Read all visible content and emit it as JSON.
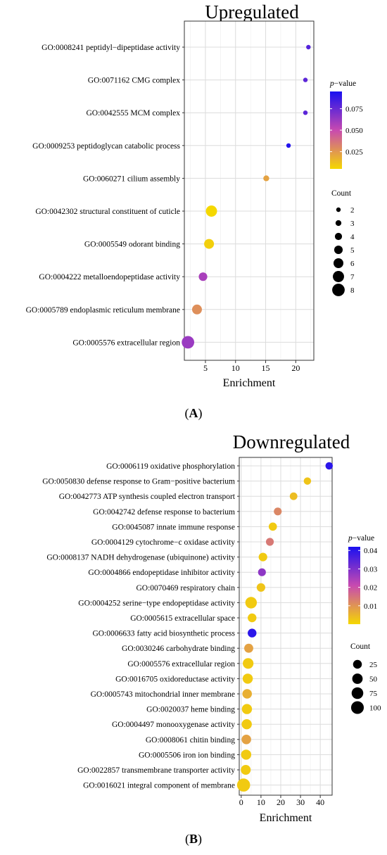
{
  "figure": {
    "panels": [
      {
        "letter": "A",
        "open": "(",
        "close": ")"
      },
      {
        "letter": "B",
        "open": "(",
        "close": ")"
      }
    ]
  },
  "chart_data": [
    {
      "type": "scatter",
      "title": "Upregulated",
      "xlabel": "Enrichment",
      "ylabel": "",
      "xlim": [
        1.5,
        23
      ],
      "x_ticks": [
        5,
        10,
        15,
        20
      ],
      "grid": true,
      "color_scale": {
        "label_italic": "p",
        "label_rest": "−value",
        "min": 0.005,
        "max": 0.095,
        "ticks": [
          0.025,
          0.05,
          0.075
        ],
        "tick_labels": [
          "0.025",
          "0.050",
          "0.075"
        ],
        "low_color": "#f5d800",
        "mid_color": "#c84ab0",
        "high_color": "#1a10f0"
      },
      "size_legend": {
        "title": "Count",
        "values": [
          2,
          3,
          4,
          5,
          6,
          7,
          8
        ],
        "labels": [
          "2",
          "3",
          "4",
          "5",
          "6",
          "7",
          "8"
        ]
      },
      "terms": [
        {
          "id": "GO:0008241",
          "name": "peptidyl−dipeptidase activity",
          "enrichment": 22.1,
          "count": 2,
          "pvalue": 0.08
        },
        {
          "id": "GO:0071162",
          "name": "CMG complex",
          "enrichment": 21.6,
          "count": 2,
          "pvalue": 0.078
        },
        {
          "id": "GO:0042555",
          "name": "MCM complex",
          "enrichment": 21.6,
          "count": 2,
          "pvalue": 0.078
        },
        {
          "id": "GO:0009253",
          "name": "peptidoglycan catabolic process",
          "enrichment": 18.8,
          "count": 2,
          "pvalue": 0.093
        },
        {
          "id": "GO:0060271",
          "name": "cilium assembly",
          "enrichment": 15.1,
          "count": 3,
          "pvalue": 0.022
        },
        {
          "id": "GO:0042302",
          "name": "structural constituent of cuticle",
          "enrichment": 6.0,
          "count": 7,
          "pvalue": 0.005
        },
        {
          "id": "GO:0005549",
          "name": "odorant binding",
          "enrichment": 5.6,
          "count": 6,
          "pvalue": 0.008
        },
        {
          "id": "GO:0004222",
          "name": "metalloendopeptidase activity",
          "enrichment": 4.6,
          "count": 5,
          "pvalue": 0.058
        },
        {
          "id": "GO:0005789",
          "name": "endoplasmic reticulum membrane",
          "enrichment": 3.6,
          "count": 6,
          "pvalue": 0.028
        },
        {
          "id": "GO:0005576",
          "name": "extracellular region",
          "enrichment": 2.1,
          "count": 8,
          "pvalue": 0.062
        }
      ]
    },
    {
      "type": "scatter",
      "title": "Downregulated",
      "xlabel": "Enrichment",
      "ylabel": "",
      "xlim": [
        -1,
        46
      ],
      "x_ticks": [
        0,
        10,
        20,
        30,
        40
      ],
      "grid": true,
      "color_scale": {
        "label_italic": "p",
        "label_rest": "−value",
        "min": 0.0,
        "max": 0.042,
        "ticks": [
          0.01,
          0.02,
          0.03,
          0.04
        ],
        "tick_labels": [
          "0.01",
          "0.02",
          "0.03",
          "0.04"
        ],
        "low_color": "#f5d800",
        "mid_color": "#c84ab0",
        "high_color": "#1a10f0"
      },
      "size_legend": {
        "title": "Count",
        "values": [
          25,
          50,
          75,
          100
        ],
        "labels": [
          "25",
          "50",
          "75",
          "100"
        ]
      },
      "terms": [
        {
          "id": "GO:0006119",
          "name": "oxidative phosphorylation",
          "enrichment": 44.5,
          "count": 10,
          "pvalue": 0.04
        },
        {
          "id": "GO:0050830",
          "name": "defense response to Gram−positive bacterium",
          "enrichment": 33.5,
          "count": 10,
          "pvalue": 0.003
        },
        {
          "id": "GO:0042773",
          "name": "ATP synthesis coupled electron transport",
          "enrichment": 26.5,
          "count": 12,
          "pvalue": 0.004
        },
        {
          "id": "GO:0042742",
          "name": "defense response to bacterium",
          "enrichment": 18.5,
          "count": 14,
          "pvalue": 0.012
        },
        {
          "id": "GO:0045087",
          "name": "innate immune response",
          "enrichment": 16.0,
          "count": 18,
          "pvalue": 0.002
        },
        {
          "id": "GO:0004129",
          "name": "cytochrome−c oxidase activity",
          "enrichment": 14.5,
          "count": 14,
          "pvalue": 0.014
        },
        {
          "id": "GO:0008137",
          "name": "NADH dehydrogenase (ubiquinone) activity",
          "enrichment": 11.0,
          "count": 22,
          "pvalue": 0.002
        },
        {
          "id": "GO:0004866",
          "name": "endopeptidase inhibitor activity",
          "enrichment": 10.5,
          "count": 14,
          "pvalue": 0.028
        },
        {
          "id": "GO:0070469",
          "name": "respiratory chain",
          "enrichment": 10.0,
          "count": 22,
          "pvalue": 0.003
        },
        {
          "id": "GO:0004252",
          "name": "serine−type endopeptidase activity",
          "enrichment": 5.0,
          "count": 72,
          "pvalue": 0.002
        },
        {
          "id": "GO:0005615",
          "name": "extracellular space",
          "enrichment": 5.5,
          "count": 24,
          "pvalue": 0.002
        },
        {
          "id": "GO:0006633",
          "name": "fatty acid biosynthetic process",
          "enrichment": 5.5,
          "count": 24,
          "pvalue": 0.04
        },
        {
          "id": "GO:0030246",
          "name": "carbohydrate binding",
          "enrichment": 3.8,
          "count": 28,
          "pvalue": 0.008
        },
        {
          "id": "GO:0005576",
          "name": "extracellular region",
          "enrichment": 3.5,
          "count": 55,
          "pvalue": 0.002
        },
        {
          "id": "GO:0016705",
          "name": "oxidoreductase activity",
          "enrichment": 3.3,
          "count": 45,
          "pvalue": 0.002
        },
        {
          "id": "GO:0005743",
          "name": "mitochondrial inner membrane",
          "enrichment": 3.0,
          "count": 35,
          "pvalue": 0.006
        },
        {
          "id": "GO:0020037",
          "name": "heme binding",
          "enrichment": 2.9,
          "count": 45,
          "pvalue": 0.002
        },
        {
          "id": "GO:0004497",
          "name": "monooxygenase activity",
          "enrichment": 2.8,
          "count": 45,
          "pvalue": 0.002
        },
        {
          "id": "GO:0008061",
          "name": "chitin binding",
          "enrichment": 2.6,
          "count": 35,
          "pvalue": 0.008
        },
        {
          "id": "GO:0005506",
          "name": "iron ion binding",
          "enrichment": 2.5,
          "count": 45,
          "pvalue": 0.002
        },
        {
          "id": "GO:0022857",
          "name": "transmembrane transporter activity",
          "enrichment": 2.3,
          "count": 40,
          "pvalue": 0.002
        },
        {
          "id": "GO:0016021",
          "name": "integral component of membrane",
          "enrichment": 1.2,
          "count": 110,
          "pvalue": 0.002
        }
      ]
    }
  ]
}
